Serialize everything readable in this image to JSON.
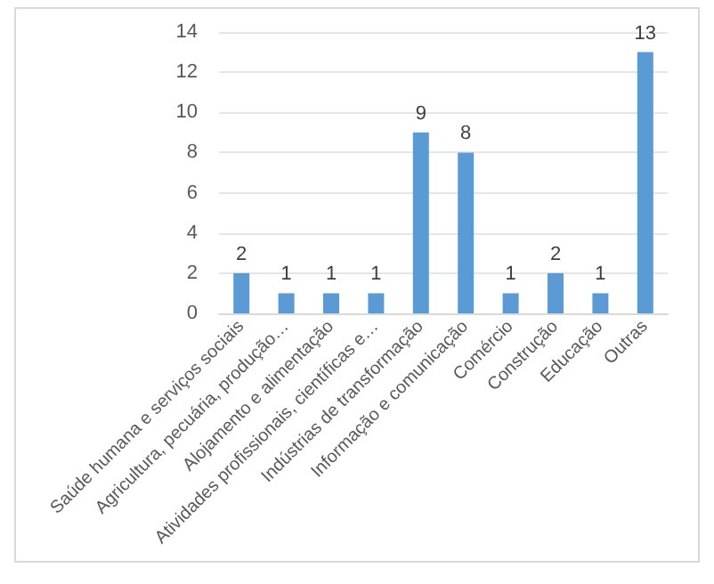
{
  "chart_data": {
    "type": "bar",
    "categories": [
      "Saúde humana e serviços sociais",
      "Agricultura, pecuária, produção…",
      "Alojamento e alimentação",
      "Atividades profissionais, científicas e…",
      "Indústrias de transformação",
      "Informação e comunicação",
      "Comércio",
      "Construção",
      "Educação",
      "Outras"
    ],
    "values": [
      2,
      1,
      1,
      1,
      9,
      8,
      1,
      2,
      1,
      13
    ],
    "color": "#5b9bd5",
    "ylim": [
      0,
      14
    ],
    "yticks": [
      0,
      2,
      4,
      6,
      8,
      10,
      12,
      14
    ],
    "grid": "y",
    "data_labels": true
  }
}
